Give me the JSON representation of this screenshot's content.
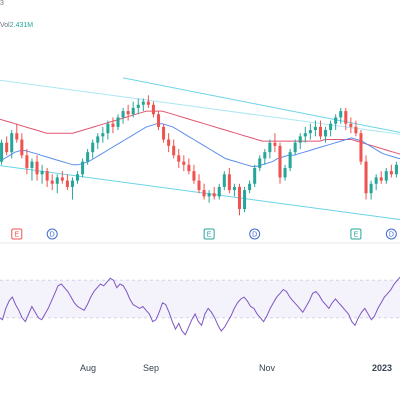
{
  "header": {
    "top_text": "3",
    "vol_label": "Vol",
    "vol_value": "2.431M"
  },
  "colors": {
    "up": "#26a69a",
    "down": "#ef5350",
    "ma_fast": "#5b8def",
    "ma_slow": "#e05570",
    "channel": "#6ad4e8",
    "rsi": "#7e57c2",
    "rsi_band": "#cfd6e8",
    "event_earnings": "#ef5350",
    "event_dividend": "#3f6ad8",
    "event_green": "#26a69a"
  },
  "chart_data": [
    {
      "type": "candlestick",
      "title": "",
      "x_labels": [
        "Aug",
        "Sep",
        "Nov",
        "2023"
      ],
      "ylim": [
        0,
        100
      ],
      "candles": [
        {
          "o": 38,
          "h": 44,
          "l": 34,
          "c": 42
        },
        {
          "o": 42,
          "h": 56,
          "l": 40,
          "c": 54
        },
        {
          "o": 54,
          "h": 58,
          "l": 46,
          "c": 48
        },
        {
          "o": 48,
          "h": 62,
          "l": 44,
          "c": 60
        },
        {
          "o": 60,
          "h": 66,
          "l": 54,
          "c": 56
        },
        {
          "o": 56,
          "h": 60,
          "l": 44,
          "c": 46
        },
        {
          "o": 46,
          "h": 50,
          "l": 34,
          "c": 38
        },
        {
          "o": 38,
          "h": 44,
          "l": 30,
          "c": 42
        },
        {
          "o": 42,
          "h": 46,
          "l": 30,
          "c": 34
        },
        {
          "o": 34,
          "h": 40,
          "l": 28,
          "c": 36
        },
        {
          "o": 36,
          "h": 38,
          "l": 26,
          "c": 30
        },
        {
          "o": 30,
          "h": 34,
          "l": 24,
          "c": 28
        },
        {
          "o": 28,
          "h": 34,
          "l": 22,
          "c": 32
        },
        {
          "o": 32,
          "h": 36,
          "l": 28,
          "c": 30
        },
        {
          "o": 30,
          "h": 34,
          "l": 24,
          "c": 26
        },
        {
          "o": 26,
          "h": 32,
          "l": 18,
          "c": 30
        },
        {
          "o": 30,
          "h": 36,
          "l": 28,
          "c": 34
        },
        {
          "o": 34,
          "h": 44,
          "l": 32,
          "c": 42
        },
        {
          "o": 42,
          "h": 50,
          "l": 40,
          "c": 48
        },
        {
          "o": 48,
          "h": 56,
          "l": 44,
          "c": 54
        },
        {
          "o": 54,
          "h": 60,
          "l": 50,
          "c": 58
        },
        {
          "o": 58,
          "h": 64,
          "l": 54,
          "c": 60
        },
        {
          "o": 60,
          "h": 68,
          "l": 56,
          "c": 66
        },
        {
          "o": 66,
          "h": 70,
          "l": 60,
          "c": 64
        },
        {
          "o": 64,
          "h": 72,
          "l": 62,
          "c": 70
        },
        {
          "o": 70,
          "h": 76,
          "l": 66,
          "c": 74
        },
        {
          "o": 74,
          "h": 78,
          "l": 68,
          "c": 72
        },
        {
          "o": 72,
          "h": 80,
          "l": 70,
          "c": 76
        },
        {
          "o": 76,
          "h": 82,
          "l": 72,
          "c": 78
        },
        {
          "o": 78,
          "h": 82,
          "l": 74,
          "c": 80
        },
        {
          "o": 80,
          "h": 84,
          "l": 76,
          "c": 78
        },
        {
          "o": 78,
          "h": 80,
          "l": 70,
          "c": 72
        },
        {
          "o": 72,
          "h": 74,
          "l": 62,
          "c": 64
        },
        {
          "o": 64,
          "h": 66,
          "l": 54,
          "c": 56
        },
        {
          "o": 56,
          "h": 60,
          "l": 48,
          "c": 52
        },
        {
          "o": 52,
          "h": 56,
          "l": 44,
          "c": 46
        },
        {
          "o": 46,
          "h": 50,
          "l": 38,
          "c": 42
        },
        {
          "o": 42,
          "h": 46,
          "l": 36,
          "c": 40
        },
        {
          "o": 40,
          "h": 44,
          "l": 34,
          "c": 36
        },
        {
          "o": 36,
          "h": 40,
          "l": 28,
          "c": 30
        },
        {
          "o": 30,
          "h": 34,
          "l": 22,
          "c": 24
        },
        {
          "o": 24,
          "h": 28,
          "l": 18,
          "c": 20
        },
        {
          "o": 20,
          "h": 24,
          "l": 16,
          "c": 22
        },
        {
          "o": 22,
          "h": 26,
          "l": 18,
          "c": 20
        },
        {
          "o": 20,
          "h": 28,
          "l": 18,
          "c": 26
        },
        {
          "o": 26,
          "h": 36,
          "l": 24,
          "c": 34
        },
        {
          "o": 34,
          "h": 38,
          "l": 22,
          "c": 24
        },
        {
          "o": 24,
          "h": 28,
          "l": 20,
          "c": 26
        },
        {
          "o": 26,
          "h": 28,
          "l": 8,
          "c": 12
        },
        {
          "o": 12,
          "h": 26,
          "l": 10,
          "c": 24
        },
        {
          "o": 24,
          "h": 30,
          "l": 22,
          "c": 28
        },
        {
          "o": 28,
          "h": 40,
          "l": 26,
          "c": 38
        },
        {
          "o": 38,
          "h": 46,
          "l": 36,
          "c": 44
        },
        {
          "o": 44,
          "h": 50,
          "l": 40,
          "c": 48
        },
        {
          "o": 48,
          "h": 56,
          "l": 44,
          "c": 54
        },
        {
          "o": 54,
          "h": 60,
          "l": 48,
          "c": 52
        },
        {
          "o": 52,
          "h": 54,
          "l": 28,
          "c": 32
        },
        {
          "o": 32,
          "h": 40,
          "l": 30,
          "c": 38
        },
        {
          "o": 38,
          "h": 50,
          "l": 36,
          "c": 48
        },
        {
          "o": 48,
          "h": 56,
          "l": 46,
          "c": 54
        },
        {
          "o": 54,
          "h": 60,
          "l": 50,
          "c": 58
        },
        {
          "o": 58,
          "h": 64,
          "l": 54,
          "c": 60
        },
        {
          "o": 60,
          "h": 66,
          "l": 56,
          "c": 62
        },
        {
          "o": 62,
          "h": 68,
          "l": 58,
          "c": 64
        },
        {
          "o": 64,
          "h": 68,
          "l": 56,
          "c": 58
        },
        {
          "o": 58,
          "h": 64,
          "l": 54,
          "c": 62
        },
        {
          "o": 62,
          "h": 68,
          "l": 58,
          "c": 66
        },
        {
          "o": 66,
          "h": 72,
          "l": 62,
          "c": 70
        },
        {
          "o": 70,
          "h": 76,
          "l": 66,
          "c": 74
        },
        {
          "o": 74,
          "h": 76,
          "l": 62,
          "c": 66
        },
        {
          "o": 66,
          "h": 70,
          "l": 60,
          "c": 64
        },
        {
          "o": 64,
          "h": 68,
          "l": 58,
          "c": 60
        },
        {
          "o": 60,
          "h": 62,
          "l": 40,
          "c": 42
        },
        {
          "o": 42,
          "h": 46,
          "l": 18,
          "c": 22
        },
        {
          "o": 22,
          "h": 30,
          "l": 18,
          "c": 28
        },
        {
          "o": 28,
          "h": 34,
          "l": 24,
          "c": 32
        },
        {
          "o": 32,
          "h": 36,
          "l": 28,
          "c": 30
        },
        {
          "o": 30,
          "h": 38,
          "l": 28,
          "c": 36
        },
        {
          "o": 36,
          "h": 40,
          "l": 32,
          "c": 34
        },
        {
          "o": 34,
          "h": 42,
          "l": 32,
          "c": 40
        },
        {
          "o": 40,
          "h": 46,
          "l": 38,
          "c": 44
        }
      ],
      "ma_fast": [
        40,
        42,
        44,
        46,
        48,
        49,
        49,
        48,
        47,
        46,
        45,
        44,
        43,
        42,
        41,
        40,
        40,
        41,
        42,
        44,
        46,
        48,
        50,
        52,
        54,
        56,
        58,
        60,
        62,
        64,
        65,
        66,
        66,
        65,
        64,
        62,
        60,
        58,
        56,
        54,
        52,
        50,
        48,
        46,
        44,
        43,
        42,
        41,
        40,
        39,
        39,
        40,
        41,
        42,
        44,
        45,
        46,
        46,
        47,
        48,
        49,
        50,
        51,
        52,
        53,
        54,
        55,
        56,
        57,
        56,
        55,
        53,
        51,
        49,
        47,
        46,
        45,
        44,
        44
      ],
      "ma_slow": [
        70,
        69,
        68,
        67,
        66,
        65,
        64,
        63,
        62,
        61,
        60,
        60,
        60,
        60,
        60,
        60,
        61,
        62,
        63,
        64,
        65,
        66,
        67,
        68,
        69,
        70,
        71,
        72,
        73,
        74,
        74,
        74,
        74,
        73,
        72,
        71,
        70,
        69,
        68,
        67,
        66,
        65,
        64,
        63,
        62,
        61,
        60,
        59,
        58,
        57,
        56,
        55,
        55,
        55,
        55,
        55,
        55,
        55,
        55,
        55,
        55,
        55,
        55,
        56,
        56,
        56,
        56,
        56,
        56,
        55,
        54,
        53,
        52,
        51,
        50,
        49,
        48,
        47,
        46
      ],
      "channel_upper": [
        95,
        60
      ],
      "channel_lower": [
        40,
        5
      ],
      "events": [
        {
          "idx": 4,
          "kind": "E",
          "style": "earnings"
        },
        {
          "idx": 11,
          "kind": "D",
          "style": "dividend"
        },
        {
          "idx": 42,
          "kind": "E",
          "style": "green"
        },
        {
          "idx": 51,
          "kind": "D",
          "style": "dividend"
        },
        {
          "idx": 71,
          "kind": "E",
          "style": "green"
        },
        {
          "idx": 78,
          "kind": "D",
          "style": "dividend"
        }
      ]
    },
    {
      "type": "line",
      "title": "",
      "ylim": [
        0,
        100
      ],
      "band": [
        30,
        70
      ],
      "values": [
        34,
        30,
        28,
        40,
        48,
        52,
        44,
        38,
        30,
        26,
        34,
        42,
        36,
        30,
        28,
        34,
        40,
        48,
        56,
        64,
        66,
        62,
        58,
        52,
        46,
        42,
        40,
        38,
        44,
        52,
        58,
        62,
        66,
        64,
        68,
        72,
        70,
        62,
        66,
        64,
        58,
        50,
        44,
        42,
        40,
        42,
        38,
        34,
        26,
        28,
        36,
        46,
        44,
        36,
        26,
        18,
        24,
        16,
        12,
        20,
        28,
        34,
        26,
        22,
        34,
        40,
        36,
        30,
        22,
        16,
        20,
        26,
        32,
        40,
        46,
        50,
        52,
        48,
        42,
        40,
        34,
        30,
        26,
        32,
        40,
        46,
        52,
        56,
        60,
        58,
        52,
        48,
        44,
        40,
        36,
        42,
        48,
        56,
        58,
        54,
        48,
        44,
        40,
        46,
        50,
        46,
        42,
        38,
        34,
        26,
        22,
        30,
        36,
        40,
        34,
        28,
        32,
        40,
        46,
        52,
        56,
        60,
        66,
        70,
        74,
        72
      ],
      "x_labels": [
        "Aug",
        "Sep",
        "Nov",
        "2023"
      ]
    }
  ]
}
